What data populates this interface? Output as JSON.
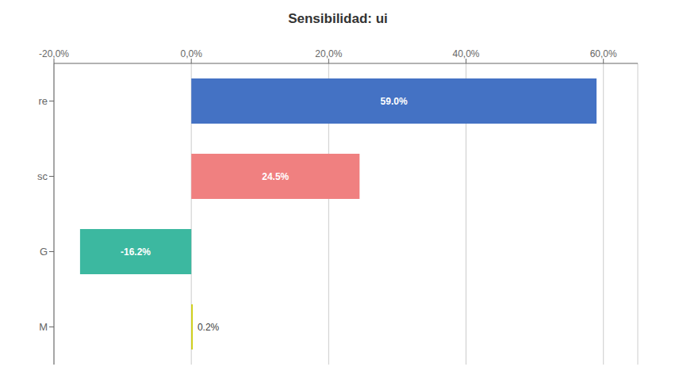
{
  "chart_data": {
    "type": "bar",
    "title": "Sensibilidad: ui",
    "orientation": "horizontal",
    "categories": [
      "re",
      "sc",
      "G",
      "M"
    ],
    "values": [
      59.0,
      24.5,
      -16.2,
      0.2
    ],
    "value_labels": [
      "59.0%",
      "24.5%",
      "-16.2%",
      "0.2%"
    ],
    "data_labels": true,
    "colors": [
      "#4472C4",
      "#F08080",
      "#3CB8A0",
      "#CCCC00"
    ],
    "xlim": [
      -20.0,
      65.0
    ],
    "xticks": [
      {
        "value": -20.0,
        "label": "-20,0%"
      },
      {
        "value": 0.0,
        "label": "0,0%"
      },
      {
        "value": 20.0,
        "label": "20,0%"
      },
      {
        "value": 40.0,
        "label": "40,0%"
      },
      {
        "value": 60.0,
        "label": "60,0%"
      }
    ],
    "grid": true
  }
}
